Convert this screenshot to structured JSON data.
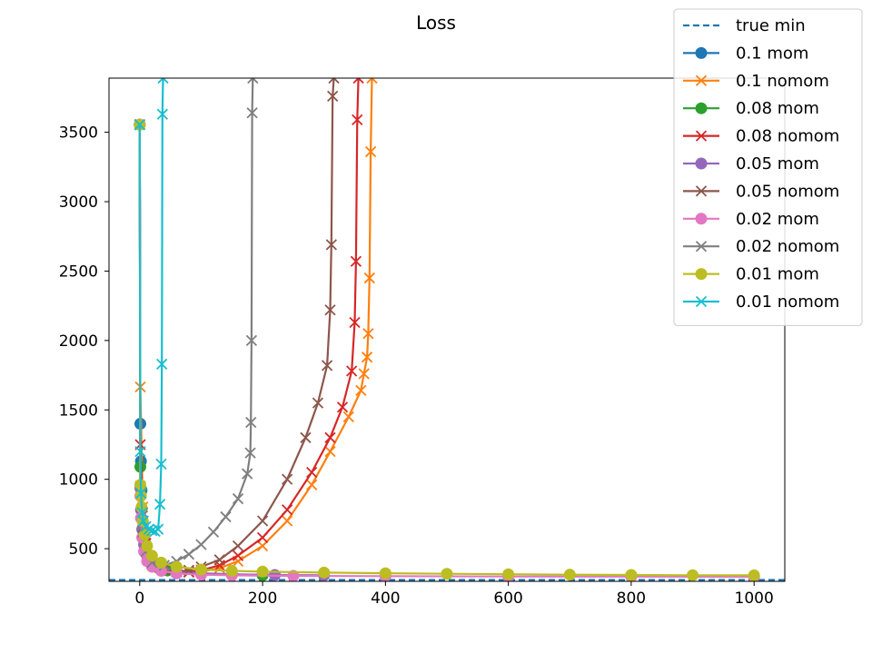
{
  "chart_data": {
    "type": "line",
    "title": "Loss",
    "xlabel": "",
    "ylabel": "",
    "xlim": [
      -50,
      1050
    ],
    "ylim": [
      265,
      3890
    ],
    "xticks": [
      0,
      200,
      400,
      600,
      800,
      1000
    ],
    "yticks": [
      500,
      1000,
      1500,
      2000,
      2500,
      3000,
      3500
    ],
    "grid": false,
    "legend_position": "upper right",
    "true_min": 275,
    "series": [
      {
        "name": "true min",
        "color": "#1f77b4",
        "marker": "none",
        "dashed": true,
        "x": [
          -50,
          1050
        ],
        "y": [
          275,
          275
        ]
      },
      {
        "name": "0.1 mom",
        "color": "#1f77b4",
        "marker": "circle",
        "x": [
          0,
          1,
          2,
          3,
          5,
          8,
          12,
          20,
          30,
          45,
          60,
          100,
          150,
          200
        ],
        "y": [
          3555,
          1400,
          1130,
          920,
          700,
          560,
          460,
          400,
          365,
          345,
          335,
          322,
          315,
          310
        ]
      },
      {
        "name": "0.1 nomom",
        "color": "#ff7f0e",
        "marker": "x",
        "x": [
          0,
          1,
          5,
          10,
          20,
          40,
          60,
          80,
          100,
          130,
          160,
          200,
          240,
          280,
          310,
          340,
          360,
          365,
          370,
          372,
          374,
          376,
          378
        ],
        "y": [
          3555,
          1665,
          800,
          560,
          430,
          355,
          335,
          330,
          335,
          360,
          410,
          520,
          700,
          960,
          1200,
          1450,
          1640,
          1760,
          1880,
          2050,
          2450,
          3360,
          3890
        ]
      },
      {
        "name": "0.08 mom",
        "color": "#2ca02c",
        "marker": "circle",
        "x": [
          0,
          1,
          2,
          3,
          5,
          8,
          12,
          20,
          30,
          45,
          60,
          100,
          150,
          200
        ],
        "y": [
          3555,
          1090,
          930,
          780,
          650,
          540,
          450,
          395,
          362,
          343,
          333,
          321,
          314,
          309
        ]
      },
      {
        "name": "0.08 nomom",
        "color": "#d62728",
        "marker": "x",
        "x": [
          0,
          1,
          5,
          10,
          20,
          40,
          60,
          80,
          100,
          130,
          160,
          200,
          240,
          280,
          310,
          330,
          345,
          350,
          352,
          354,
          356
        ],
        "y": [
          3555,
          1250,
          760,
          540,
          420,
          350,
          333,
          333,
          345,
          380,
          450,
          580,
          780,
          1050,
          1300,
          1520,
          1780,
          2130,
          2570,
          3590,
          3890
        ]
      },
      {
        "name": "0.05 mom",
        "color": "#9467bd",
        "marker": "circle",
        "x": [
          0,
          1,
          2,
          4,
          7,
          12,
          20,
          35,
          60,
          100,
          150,
          220,
          300
        ],
        "y": [
          3555,
          940,
          780,
          640,
          530,
          450,
          400,
          360,
          338,
          323,
          316,
          311,
          308
        ]
      },
      {
        "name": "0.05 nomom",
        "color": "#8c564b",
        "marker": "x",
        "x": [
          0,
          1,
          5,
          10,
          20,
          40,
          60,
          80,
          100,
          130,
          160,
          200,
          240,
          270,
          290,
          305,
          310,
          312,
          314,
          316
        ],
        "y": [
          3555,
          900,
          650,
          500,
          400,
          345,
          335,
          345,
          370,
          420,
          520,
          700,
          1000,
          1300,
          1550,
          1820,
          2220,
          2690,
          3760,
          3890
        ]
      },
      {
        "name": "0.02 mom",
        "color": "#e377c2",
        "marker": "circle",
        "x": [
          0,
          1,
          2,
          4,
          7,
          12,
          20,
          35,
          60,
          100,
          150,
          250,
          400,
          600,
          800,
          1000
        ],
        "y": [
          3555,
          880,
          720,
          580,
          480,
          410,
          370,
          340,
          322,
          313,
          308,
          304,
          302,
          300,
          299,
          298
        ]
      },
      {
        "name": "0.02 nomom",
        "color": "#7f7f7f",
        "marker": "x",
        "x": [
          0,
          1,
          5,
          10,
          20,
          40,
          60,
          80,
          100,
          120,
          140,
          160,
          175,
          180,
          181,
          182,
          183,
          184
        ],
        "y": [
          3555,
          950,
          620,
          480,
          400,
          380,
          410,
          460,
          530,
          620,
          730,
          860,
          1040,
          1190,
          1410,
          2000,
          3640,
          3890
        ]
      },
      {
        "name": "0.01 mom",
        "color": "#bcbd22",
        "marker": "circle",
        "x": [
          0,
          1,
          2,
          3,
          5,
          8,
          12,
          20,
          35,
          60,
          100,
          150,
          200,
          300,
          400,
          500,
          600,
          700,
          800,
          900,
          1000
        ],
        "y": [
          3555,
          960,
          880,
          800,
          700,
          600,
          520,
          450,
          400,
          370,
          350,
          340,
          335,
          328,
          323,
          319,
          316,
          313,
          311,
          309,
          308
        ]
      },
      {
        "name": "0.01 nomom",
        "color": "#17becf",
        "marker": "x",
        "x": [
          0,
          1,
          2,
          4,
          6,
          10,
          15,
          20,
          25,
          30,
          33,
          35,
          36,
          37,
          38
        ],
        "y": [
          3555,
          1200,
          900,
          760,
          700,
          660,
          640,
          630,
          625,
          640,
          820,
          1110,
          1830,
          3630,
          3890
        ]
      }
    ]
  }
}
